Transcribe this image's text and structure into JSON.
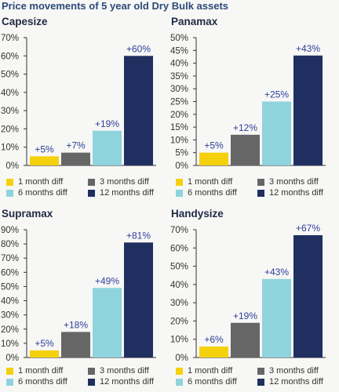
{
  "page_title": "Price movements of 5 year old Dry Bulk assets",
  "colors": {
    "1 month diff": "#f5d10d",
    "3 months diff": "#666666",
    "6 months diff": "#8fd3dd",
    "12 months diff": "#1f3060",
    "label": "#2d3e99",
    "axis": "#333333"
  },
  "chart_data": [
    {
      "type": "bar",
      "title": "Capesize",
      "categories": [
        "1 month diff",
        "3 months diff",
        "6 months diff",
        "12 months diff"
      ],
      "values": [
        5,
        7,
        19,
        60
      ],
      "value_labels": [
        "+5%",
        "+7%",
        "+19%",
        "+60%"
      ],
      "ylim": [
        0,
        70
      ],
      "yticks": [
        0,
        10,
        20,
        30,
        40,
        50,
        60,
        70
      ],
      "ytick_labels": [
        "0%",
        "10%",
        "20%",
        "30%",
        "40%",
        "50%",
        "60%",
        "70%"
      ],
      "xlabel": "",
      "ylabel": "",
      "grid": false,
      "legend": "bottom"
    },
    {
      "type": "bar",
      "title": "Panamax",
      "categories": [
        "1 month diff",
        "3 months diff",
        "6 months diff",
        "12 months diff"
      ],
      "values": [
        5,
        12,
        25,
        43
      ],
      "value_labels": [
        "+5%",
        "+12%",
        "+25%",
        "+43%"
      ],
      "ylim": [
        0,
        50
      ],
      "yticks": [
        0,
        5,
        10,
        15,
        20,
        25,
        30,
        35,
        40,
        45,
        50
      ],
      "ytick_labels": [
        "0%",
        "5%",
        "10%",
        "15%",
        "20%",
        "25%",
        "30%",
        "35%",
        "40%",
        "45%",
        "50%"
      ],
      "xlabel": "",
      "ylabel": "",
      "grid": false,
      "legend": "bottom"
    },
    {
      "type": "bar",
      "title": "Supramax",
      "categories": [
        "1 month diff",
        "3 months diff",
        "6 months diff",
        "12 months diff"
      ],
      "values": [
        5,
        18,
        49,
        81
      ],
      "value_labels": [
        "+5%",
        "+18%",
        "+49%",
        "+81%"
      ],
      "ylim": [
        0,
        90
      ],
      "yticks": [
        0,
        10,
        20,
        30,
        40,
        50,
        60,
        70,
        80,
        90
      ],
      "ytick_labels": [
        "0%",
        "10%",
        "20%",
        "30%",
        "40%",
        "50%",
        "60%",
        "70%",
        "80%",
        "90%"
      ],
      "xlabel": "",
      "ylabel": "",
      "grid": false,
      "legend": "bottom"
    },
    {
      "type": "bar",
      "title": "Handysize",
      "categories": [
        "1 month diff",
        "3 months diff",
        "6 months diff",
        "12 months diff"
      ],
      "values": [
        6,
        19,
        43,
        67
      ],
      "value_labels": [
        "+6%",
        "+19%",
        "+43%",
        "+67%"
      ],
      "ylim": [
        0,
        70
      ],
      "yticks": [
        0,
        10,
        20,
        30,
        40,
        50,
        60,
        70
      ],
      "ytick_labels": [
        "0%",
        "10%",
        "20%",
        "30%",
        "40%",
        "50%",
        "60%",
        "70%"
      ],
      "xlabel": "",
      "ylabel": "",
      "grid": false,
      "legend": "bottom"
    }
  ]
}
